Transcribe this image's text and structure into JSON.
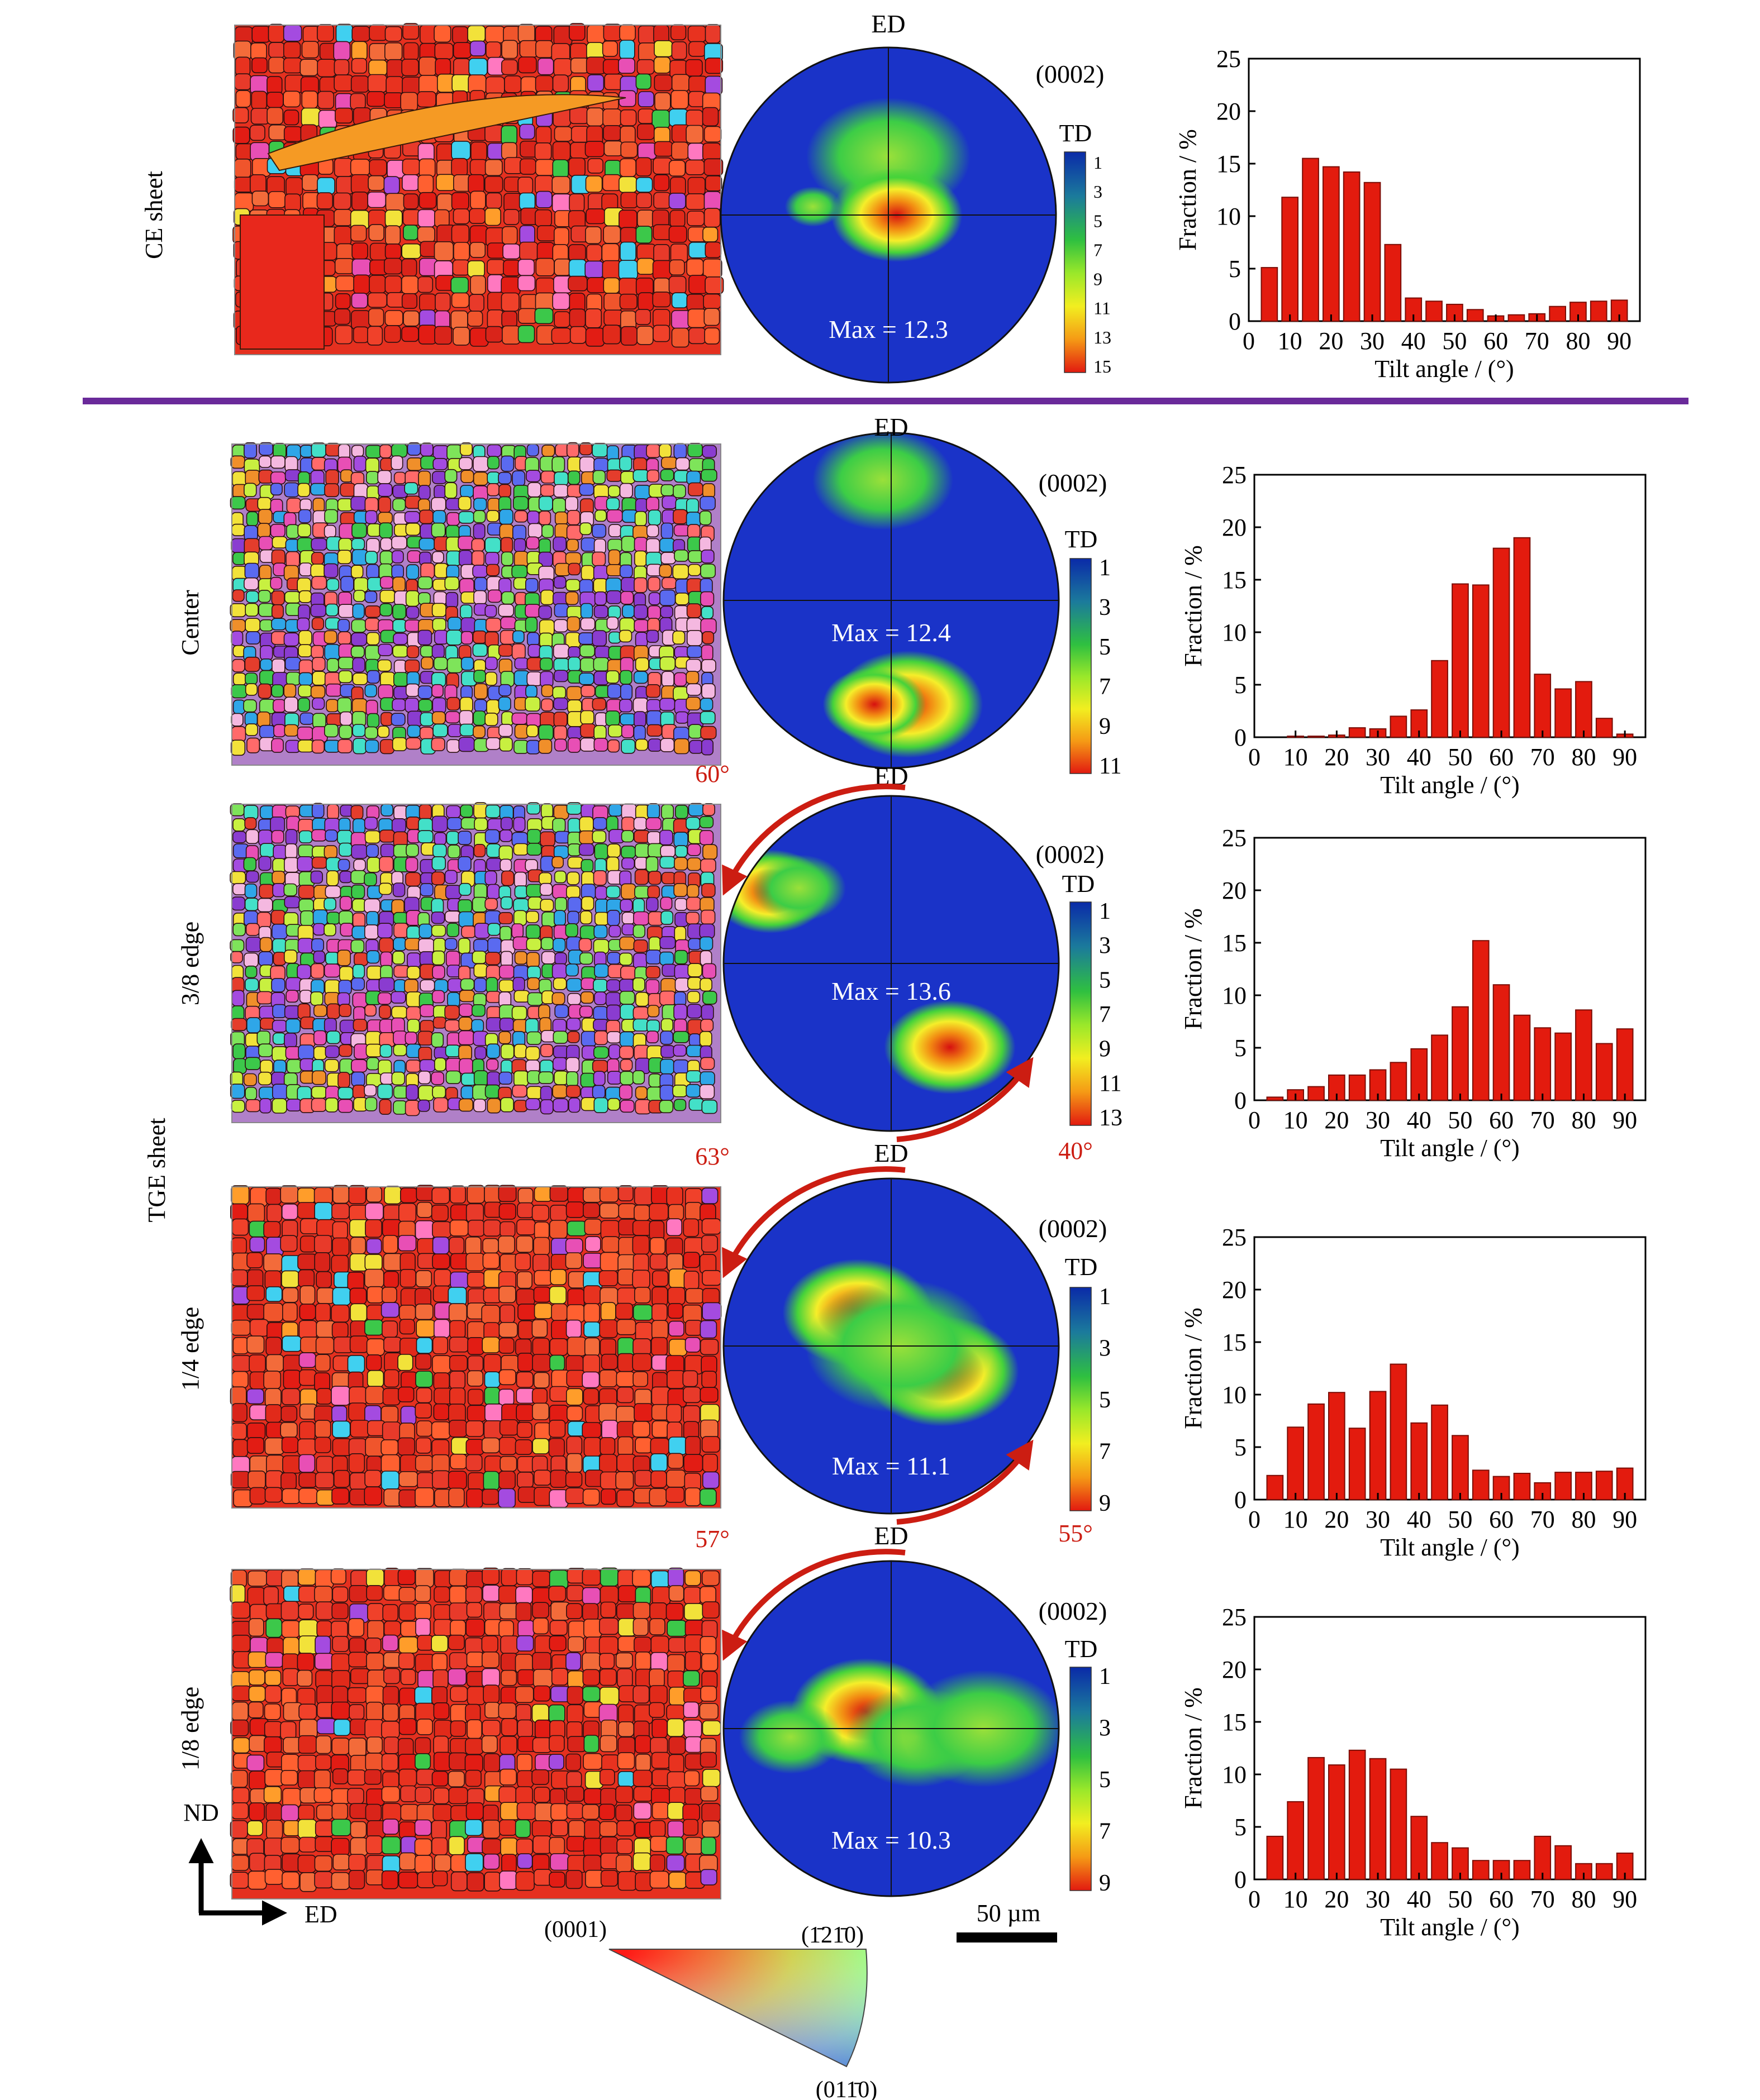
{
  "colors": {
    "bar_fill": "#e31b0e",
    "bar_stroke": "#7a0d06",
    "divider": "#6a2a9a",
    "annotation": "#cc1d12",
    "pole_bg": "#1a33c8"
  },
  "scale_bar_label": "50 µm",
  "axes_labels": {
    "nd": "ND",
    "ed": "ED"
  },
  "ipf_key": {
    "corner_0001": "(0001)",
    "corner_1210": "(1̄21̄0)",
    "corner_0110": "(011̄0)"
  },
  "rows": [
    {
      "id": "ce",
      "label": "CE sheet",
      "ebsd": {
        "dominant": "red"
      },
      "pole": {
        "plane": "(0002)",
        "top": "ED",
        "legend_title": "TD",
        "max_label": "Max = 12.3",
        "legend_ticks": [
          "1",
          "3",
          "5",
          "7",
          "9",
          "11",
          "13",
          "15"
        ],
        "rotation_top": "",
        "rotation_bottom": ""
      },
      "chart_data": {
        "type": "bar",
        "x": [
          5,
          10,
          15,
          20,
          25,
          30,
          35,
          40,
          45,
          50,
          55,
          60,
          65,
          70,
          75,
          80,
          85,
          90
        ],
        "values": [
          5.1,
          11.8,
          15.5,
          14.7,
          14.2,
          13.2,
          7.3,
          2.2,
          1.9,
          1.6,
          1.1,
          0.5,
          0.6,
          0.7,
          1.4,
          1.8,
          1.9,
          2.0
        ],
        "xlabel": "Tilt angle / (°)",
        "ylabel": "Fraction / %",
        "xlim": [
          0,
          95
        ],
        "ylim": [
          0,
          25
        ],
        "xticks": [
          "0",
          "10",
          "20",
          "30",
          "40",
          "50",
          "60",
          "70",
          "80",
          "90"
        ],
        "yticks": [
          "0",
          "5",
          "10",
          "15",
          "20",
          "25"
        ]
      }
    },
    {
      "id": "center",
      "label": "Center",
      "ebsd": {
        "dominant": "mixed"
      },
      "pole": {
        "plane": "(0002)",
        "top": "ED",
        "legend_title": "TD",
        "max_label": "Max = 12.4",
        "legend_ticks": [
          "1",
          "3",
          "5",
          "7",
          "9",
          "11"
        ],
        "rotation_top": "",
        "rotation_bottom": ""
      },
      "chart_data": {
        "type": "bar",
        "x": [
          5,
          10,
          15,
          20,
          25,
          30,
          35,
          40,
          45,
          50,
          55,
          60,
          65,
          70,
          75,
          80,
          85,
          90
        ],
        "values": [
          0,
          0.1,
          0.1,
          0.2,
          0.9,
          0.8,
          2.0,
          2.6,
          7.3,
          14.6,
          14.5,
          18.0,
          19.0,
          6.0,
          4.6,
          5.3,
          1.8,
          0.3
        ],
        "xlabel": "Tilt angle / (°)",
        "ylabel": "Fraction / %",
        "xlim": [
          0,
          95
        ],
        "ylim": [
          0,
          25
        ],
        "xticks": [
          "0",
          "10",
          "20",
          "30",
          "40",
          "50",
          "60",
          "70",
          "80",
          "90"
        ],
        "yticks": [
          "0",
          "5",
          "10",
          "15",
          "20",
          "25"
        ]
      }
    },
    {
      "id": "3-8-edge",
      "label": "3/8 edge",
      "ebsd": {
        "dominant": "mixed"
      },
      "pole": {
        "plane": "(0002)",
        "top": "ED",
        "legend_title": "TD",
        "max_label": "Max = 13.6",
        "legend_ticks": [
          "1",
          "3",
          "5",
          "7",
          "9",
          "11",
          "13"
        ],
        "rotation_top": "60°",
        "rotation_bottom": "40°"
      },
      "chart_data": {
        "type": "bar",
        "x": [
          5,
          10,
          15,
          20,
          25,
          30,
          35,
          40,
          45,
          50,
          55,
          60,
          65,
          70,
          75,
          80,
          85,
          90
        ],
        "values": [
          0.3,
          1.0,
          1.3,
          2.4,
          2.4,
          2.9,
          3.6,
          4.9,
          6.2,
          8.9,
          15.2,
          11.0,
          8.1,
          6.9,
          6.4,
          8.6,
          5.4,
          6.8
        ],
        "xlabel": "Tilt angle / (°)",
        "ylabel": "Fraction / %",
        "xlim": [
          0,
          95
        ],
        "ylim": [
          0,
          25
        ],
        "xticks": [
          "0",
          "10",
          "20",
          "30",
          "40",
          "50",
          "60",
          "70",
          "80",
          "90"
        ],
        "yticks": [
          "0",
          "5",
          "10",
          "15",
          "20",
          "25"
        ]
      }
    },
    {
      "id": "1-4-edge",
      "label": "1/4 edge",
      "ebsd": {
        "dominant": "red"
      },
      "pole": {
        "plane": "(0002)",
        "top": "ED",
        "legend_title": "TD",
        "max_label": "Max = 11.1",
        "legend_ticks": [
          "1",
          "3",
          "5",
          "7",
          "9"
        ],
        "rotation_top": "63°",
        "rotation_bottom": "55°"
      },
      "chart_data": {
        "type": "bar",
        "x": [
          5,
          10,
          15,
          20,
          25,
          30,
          35,
          40,
          45,
          50,
          55,
          60,
          65,
          70,
          75,
          80,
          85,
          90
        ],
        "values": [
          2.3,
          6.9,
          9.1,
          10.2,
          6.8,
          10.3,
          12.9,
          7.3,
          9.0,
          6.1,
          2.8,
          2.2,
          2.5,
          1.6,
          2.6,
          2.6,
          2.7,
          3.0
        ],
        "xlabel": "Tilt angle / (°)",
        "ylabel": "Fraction / %",
        "xlim": [
          0,
          95
        ],
        "ylim": [
          0,
          25
        ],
        "xticks": [
          "0",
          "10",
          "20",
          "30",
          "40",
          "50",
          "60",
          "70",
          "80",
          "90"
        ],
        "yticks": [
          "0",
          "5",
          "10",
          "15",
          "20",
          "25"
        ]
      }
    },
    {
      "id": "1-8-edge",
      "label": "1/8 edge",
      "ebsd": {
        "dominant": "red"
      },
      "pole": {
        "plane": "(0002)",
        "top": "ED",
        "legend_title": "TD",
        "max_label": "Max = 10.3",
        "legend_ticks": [
          "1",
          "3",
          "5",
          "7",
          "9"
        ],
        "rotation_top": "57°",
        "rotation_bottom": ""
      },
      "chart_data": {
        "type": "bar",
        "x": [
          5,
          10,
          15,
          20,
          25,
          30,
          35,
          40,
          45,
          50,
          55,
          60,
          65,
          70,
          75,
          80,
          85,
          90
        ],
        "values": [
          4.1,
          7.4,
          11.6,
          10.9,
          12.3,
          11.5,
          10.5,
          6.0,
          3.5,
          3.0,
          1.8,
          1.8,
          1.8,
          4.1,
          3.2,
          1.5,
          1.5,
          2.5
        ],
        "xlabel": "Tilt angle / (°)",
        "ylabel": "Fraction / %",
        "xlim": [
          0,
          95
        ],
        "ylim": [
          0,
          25
        ],
        "xticks": [
          "0",
          "10",
          "20",
          "30",
          "40",
          "50",
          "60",
          "70",
          "80",
          "90"
        ],
        "yticks": [
          "0",
          "5",
          "10",
          "15",
          "20",
          "25"
        ]
      }
    }
  ],
  "group_label": "TGE sheet"
}
